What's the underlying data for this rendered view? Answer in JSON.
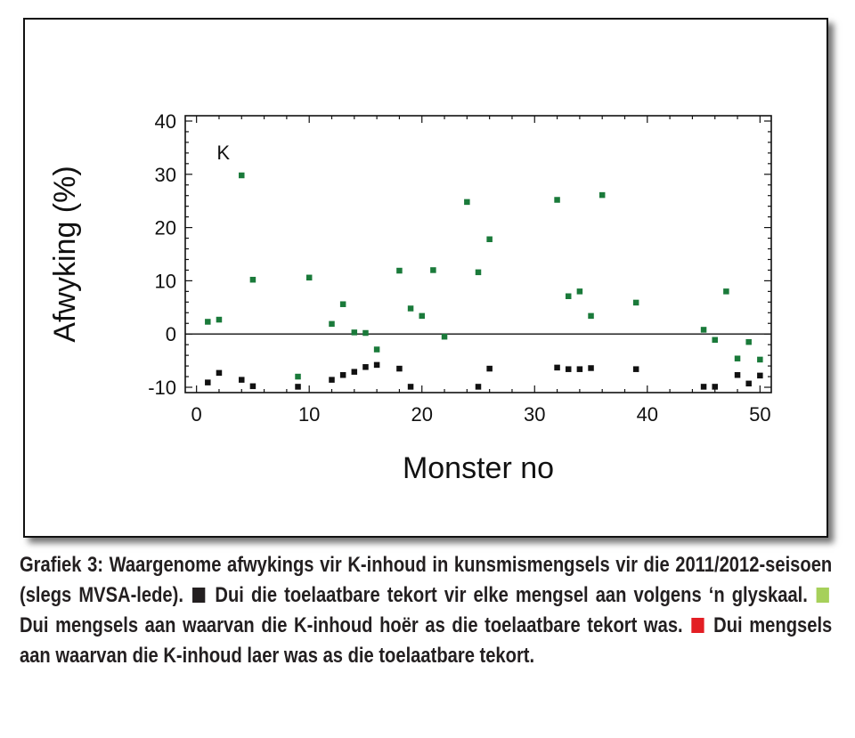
{
  "chart_data": {
    "type": "scatter",
    "annotation": "K",
    "xlabel": "Monster no",
    "ylabel": "Afwyking (%)",
    "xlim": [
      -1,
      51
    ],
    "ylim": [
      -11,
      41
    ],
    "xticks": [
      0,
      10,
      20,
      30,
      40,
      50
    ],
    "yticks": [
      -10,
      0,
      10,
      20,
      30,
      40
    ],
    "grid": false,
    "zero_line": true,
    "series": [
      {
        "color": "#1a7a3a",
        "x": [
          1,
          2,
          4,
          5,
          9,
          10,
          12,
          13,
          14,
          15,
          16,
          18,
          19,
          20,
          21,
          22,
          24,
          25,
          26,
          32,
          33,
          34,
          35,
          36,
          39,
          45,
          46,
          47,
          48,
          49,
          50
        ],
        "y": [
          2.3,
          2.7,
          29.8,
          10.2,
          -8,
          10.6,
          1.9,
          5.6,
          0.3,
          0.2,
          -2.9,
          11.9,
          4.8,
          3.4,
          12.0,
          -0.5,
          24.8,
          11.6,
          17.8,
          25.2,
          7.1,
          8.0,
          3.4,
          26.1,
          5.9,
          0.8,
          -1.1,
          8.0,
          -4.6,
          -1.5,
          -4.8
        ]
      },
      {
        "color": "#111111",
        "x": [
          1,
          2,
          4,
          5,
          9,
          12,
          13,
          14,
          15,
          16,
          18,
          19,
          25,
          26,
          32,
          33,
          34,
          35,
          39,
          45,
          46,
          48,
          49,
          50
        ],
        "y": [
          -9.1,
          -7.3,
          -8.6,
          -9.8,
          -9.9,
          -8.6,
          -7.7,
          -7.1,
          -6.2,
          -5.8,
          -6.5,
          -9.9,
          -9.9,
          -6.5,
          -6.3,
          -6.6,
          -6.6,
          -6.4,
          -6.6,
          -9.9,
          -9.9,
          -7.7,
          -9.3,
          -7.8
        ]
      }
    ]
  },
  "caption": {
    "part1": "Grafiek 3: Waargenome afwykings vir K-inhoud in kunsmismengsels vir die 2011/2012-seisoen (slegs MVSA-lede).",
    "part2": "Dui die toelaatbare tekort vir elke mengsel aan volgens ‘n glyskaal.",
    "part3": "Dui mengsels aan waarvan die K-inhoud hoër as die toelaatbare tekort was.",
    "part4": "Dui mengsels aan waarvan die K-inhoud laer was as die toelaatbare tekort.",
    "marker_colors": [
      "#231f20",
      "#a6d05a",
      "#e31e24"
    ]
  }
}
